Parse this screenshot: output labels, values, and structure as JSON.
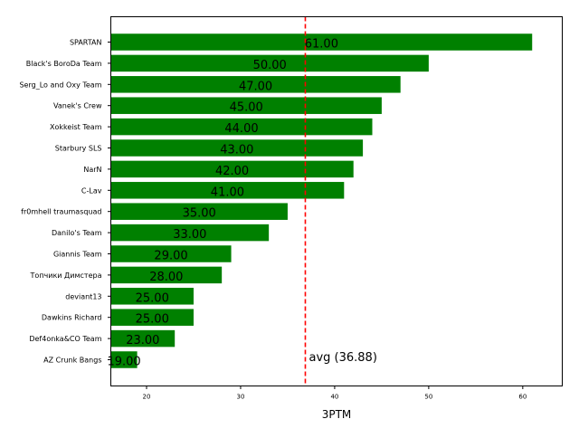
{
  "chart_data": {
    "type": "bar",
    "orientation": "horizontal",
    "title": "",
    "xlabel": "3PTM",
    "ylabel": "",
    "xlim": [
      16.2,
      64.2
    ],
    "xticks": [
      20,
      30,
      40,
      50,
      60
    ],
    "grid": false,
    "categories": [
      "SPARTAN",
      "Black's BoroDa Team",
      "Serg_Lo and Oxy Team",
      "Vanek's Crew",
      "Xokkeist Team",
      "Starbury SLS",
      "NarN",
      "C-Lav",
      "fr0mhell traumasquad",
      "Danilo's Team",
      "Giannis Team",
      "Топчики Димстера",
      "deviant13",
      "Dawkins Richard",
      "Def4onka&CO Team",
      "AZ Crunk Bangs"
    ],
    "values": [
      61,
      50,
      47,
      45,
      44,
      43,
      42,
      41,
      35,
      33,
      29,
      28,
      25,
      25,
      23,
      19
    ],
    "value_labels": [
      "61.00",
      "50.00",
      "47.00",
      "45.00",
      "44.00",
      "43.00",
      "42.00",
      "41.00",
      "35.00",
      "33.00",
      "29.00",
      "28.00",
      "25.00",
      "25.00",
      "23.00",
      "19.00"
    ],
    "bar_color": "#008000",
    "average": {
      "value": 36.88,
      "label": "avg (36.88)",
      "color": "#ff0000",
      "style": "dashed"
    }
  }
}
